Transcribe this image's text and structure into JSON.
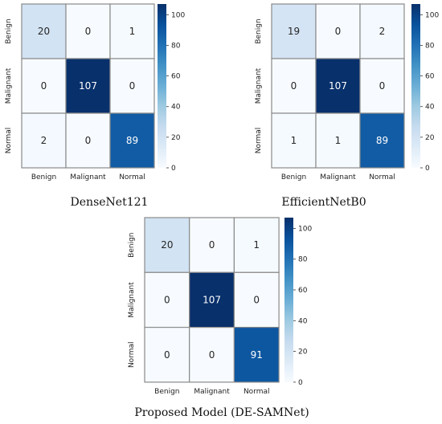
{
  "chart_data": [
    {
      "type": "heatmap",
      "caption": "DenseNet121",
      "x_categories": [
        "Benign",
        "Malignant",
        "Normal"
      ],
      "y_categories": [
        "Benign",
        "Malignant",
        "Normal"
      ],
      "values": [
        [
          20,
          0,
          1
        ],
        [
          0,
          107,
          0
        ],
        [
          2,
          0,
          89
        ]
      ],
      "colorbar": {
        "min": 0,
        "max": 107,
        "ticks": [
          0,
          20,
          40,
          60,
          80,
          100
        ]
      },
      "colormap": "Blues"
    },
    {
      "type": "heatmap",
      "caption": "EfficientNetB0",
      "x_categories": [
        "Benign",
        "Malignant",
        "Normal"
      ],
      "y_categories": [
        "Benign",
        "Malignant",
        "Normal"
      ],
      "values": [
        [
          19,
          0,
          2
        ],
        [
          0,
          107,
          0
        ],
        [
          1,
          1,
          89
        ]
      ],
      "colorbar": {
        "min": 0,
        "max": 107,
        "ticks": [
          0,
          20,
          40,
          60,
          80,
          100
        ]
      },
      "colormap": "Blues"
    },
    {
      "type": "heatmap",
      "caption": "Proposed Model (DE-SAMNet)",
      "x_categories": [
        "Benign",
        "Malignant",
        "Normal"
      ],
      "y_categories": [
        "Benign",
        "Malignant",
        "Normal"
      ],
      "values": [
        [
          20,
          0,
          1
        ],
        [
          0,
          107,
          0
        ],
        [
          0,
          0,
          91
        ]
      ],
      "colorbar": {
        "min": 0,
        "max": 107,
        "ticks": [
          0,
          20,
          40,
          60,
          80,
          100
        ]
      },
      "colormap": "Blues"
    }
  ],
  "colors": {
    "cell_border": "#8a8a8a",
    "text_light": "#ffffff",
    "text_dark": "#262626"
  }
}
